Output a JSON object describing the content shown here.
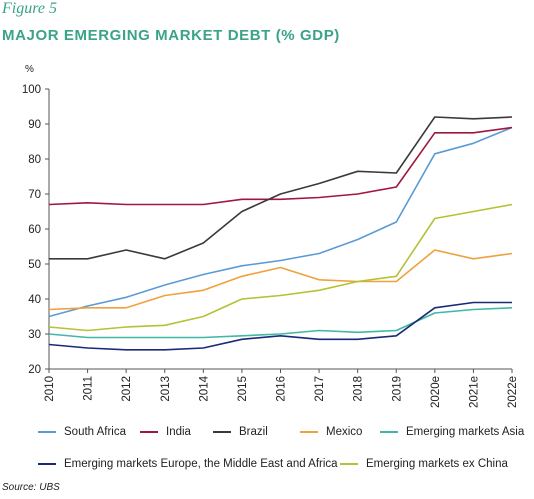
{
  "figure": {
    "label": "Figure 5",
    "title": "MAJOR EMERGING MARKET DEBT (% GDP)",
    "unit": "%"
  },
  "source": "Source: UBS",
  "chart_data": {
    "type": "line",
    "title": "MAJOR EMERGING MARKET DEBT (% GDP)",
    "ylabel": "%",
    "ylim": [
      20,
      100
    ],
    "yticks": [
      20,
      30,
      40,
      50,
      60,
      70,
      80,
      90,
      100
    ],
    "grid": false,
    "legend": "bottom",
    "categories": [
      "2010",
      "2011",
      "2012",
      "2013",
      "2014",
      "2015",
      "2016",
      "2017",
      "2018",
      "2019",
      "2020e",
      "2021e",
      "2022e"
    ],
    "series": [
      {
        "name": "South Africa",
        "color": "#5b9bd5",
        "values": [
          35,
          38,
          40.5,
          44,
          47,
          49.5,
          51,
          53,
          57,
          62,
          81.5,
          84.5,
          89
        ]
      },
      {
        "name": "India",
        "color": "#a0173e",
        "values": [
          67,
          67.5,
          67,
          67,
          67,
          68.5,
          68.5,
          69,
          70,
          72,
          87.5,
          87.5,
          89
        ]
      },
      {
        "name": "Brazil",
        "color": "#3a3a3a",
        "values": [
          51.5,
          51.5,
          54,
          51.5,
          56,
          65,
          70,
          73,
          76.5,
          76,
          92,
          91.5,
          92
        ]
      },
      {
        "name": "Mexico",
        "color": "#f0a03c",
        "values": [
          37,
          37.5,
          37.5,
          41,
          42.5,
          46.5,
          49,
          45.5,
          45,
          45,
          54,
          51.5,
          53
        ]
      },
      {
        "name": "Emerging markets Asia",
        "color": "#3fb8a4",
        "values": [
          30,
          29,
          29,
          29,
          29,
          29.5,
          30,
          31,
          30.5,
          31,
          36,
          37,
          37.5
        ]
      },
      {
        "name": "Emerging markets Europe, the Middle East and Africa",
        "color": "#1a2a78",
        "values": [
          27,
          26,
          25.5,
          25.5,
          26,
          28.5,
          29.5,
          28.5,
          28.5,
          29.5,
          37.5,
          39,
          39
        ]
      },
      {
        "name": "Emerging markets ex China",
        "color": "#b5c235",
        "values": [
          32,
          31,
          32,
          32.5,
          35,
          40,
          41,
          42.5,
          45,
          46.5,
          63,
          65,
          67
        ]
      }
    ]
  }
}
